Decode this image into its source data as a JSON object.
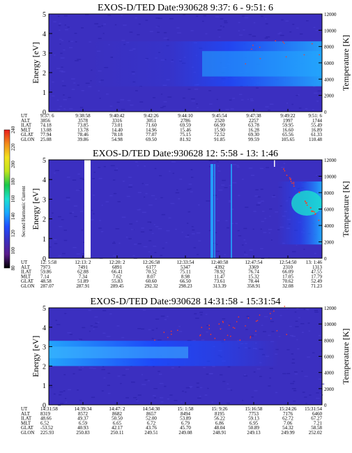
{
  "colors": {
    "background_low": "#2a1fa8",
    "background_mid": "#3b2fc0",
    "flux_mid": "#1a4cff",
    "flux_high": "#22aaff",
    "hot_dot": "#ff3b1f",
    "gap": "#ffffff",
    "colorbar": [
      "#000000",
      "#5a1c8c",
      "#3b2fc0",
      "#1f4dff",
      "#18a8ff",
      "#1ce0d0",
      "#19c84a",
      "#bfe41b",
      "#f2e21c",
      "#f28a1a",
      "#e81c1c"
    ]
  },
  "colorbar": {
    "title": "Second Harmonic Current",
    "ticks": [
      "80",
      "100",
      "120",
      "140",
      "160",
      "180",
      "200",
      "220",
      "240"
    ]
  },
  "chart_data": [
    {
      "type": "heatmap",
      "title": "EXOS-D/TED   Date:930628   9:37: 6 - 9:51: 6",
      "ylabel": "Energy [eV]",
      "y2label": "Temperature [K]",
      "ylim": [
        0,
        5
      ],
      "y2lim": [
        0,
        12000
      ],
      "yticks": [
        "0",
        "1",
        "2",
        "3",
        "4",
        "5"
      ],
      "y2ticks": [
        "0",
        "2000",
        "4000",
        "6000",
        "8000",
        "10000",
        "12000"
      ],
      "ephemeris": {
        "row_labels": [
          "UT",
          "ALT",
          "ILAT",
          "MLT",
          "GLAT",
          "GLON"
        ],
        "columns": [
          [
            "9:37: 6",
            "3856",
            "74.18",
            "13.08",
            "77.94",
            "25.08"
          ],
          [
            "9:38:58",
            "3578",
            "73.85",
            "13.78",
            "78.46",
            "39.86"
          ],
          [
            "9:40:42",
            "3316",
            "73.01",
            "14.40",
            "78.18",
            "54.98"
          ],
          [
            "9:42:26",
            "3051",
            "71.60",
            "14.96",
            "77.07",
            "69.50"
          ],
          [
            "9:44:10",
            "2786",
            "69.59",
            "15.46",
            "75.15",
            "81.92"
          ],
          [
            "9:45:54",
            "2520",
            "66.99",
            "15.90",
            "72.52",
            "91.85"
          ],
          [
            "9:47:38",
            "2257",
            "63.78",
            "16.28",
            "69.30",
            "99.59"
          ],
          [
            "9:49:22",
            "1997",
            "59.95",
            "16.60",
            "65.56",
            "105.65"
          ],
          [
            "9:51: 6",
            "1744",
            "55.49",
            "16.89",
            "61.33",
            "110.48"
          ]
        ]
      }
    },
    {
      "type": "heatmap",
      "title": "EXOS-D/TED   Date:930628   12: 5:58 - 13: 1:46",
      "ylabel": "Energy [eV]",
      "y2label": "Temperature [K]",
      "ylim": [
        0,
        5
      ],
      "y2lim": [
        0,
        12000
      ],
      "yticks": [
        "0",
        "1",
        "2",
        "3",
        "4",
        "5"
      ],
      "y2ticks": [
        "0",
        "2000",
        "4000",
        "6000",
        "8000",
        "10000",
        "12000"
      ],
      "ephemeris": {
        "row_labels": [
          "UT",
          "ALT",
          "ILAT",
          "MLT",
          "GLAT",
          "GLON"
        ],
        "columns": [
          [
            "12: 5:58",
            "7973",
            "59.86",
            "7.14",
            "48.58",
            "287.07"
          ],
          [
            "12:13: 2",
            "7491",
            "62.88",
            "7.34",
            "51.89",
            "287.91"
          ],
          [
            "12:20: 2",
            "6891",
            "66.41",
            "7.62",
            "55.83",
            "289.45"
          ],
          [
            "12:26:58",
            "6177",
            "70.52",
            "8.07",
            "60.60",
            "292.32"
          ],
          [
            "12:33:54",
            "5347",
            "75.11",
            "8.98",
            "66.50",
            "298.23"
          ],
          [
            "12:40:58",
            "4392",
            "78.92",
            "11.47",
            "73.61",
            "313.39"
          ],
          [
            "12:47:54",
            "3369",
            "76.74",
            "15.32",
            "78.44",
            "358.91"
          ],
          [
            "12:54:50",
            "2310",
            "66.09",
            "17.05",
            "70.62",
            "32.08"
          ],
          [
            "13: 1:46",
            "1313",
            "47.55",
            "17.79",
            "52.49",
            "71.23"
          ]
        ]
      }
    },
    {
      "type": "heatmap",
      "title": "EXOS-D/TED   Date:930628   14:31:58 - 15:31:54",
      "ylabel": "Energy [eV]",
      "y2label": "Temperature [K]",
      "ylim": [
        0,
        5
      ],
      "y2lim": [
        0,
        12000
      ],
      "yticks": [
        "0",
        "1",
        "2",
        "3",
        "4",
        "5"
      ],
      "y2ticks": [
        "0",
        "2000",
        "4000",
        "6000",
        "8000",
        "10000",
        "12000"
      ],
      "ephemeris": {
        "row_labels": [
          "UT",
          "ALT",
          "ILAT",
          "MLT",
          "GLAT",
          "GLON"
        ],
        "columns": [
          [
            "14:31:58",
            "8319",
            "48.66",
            "6.52",
            "-53.52",
            "225.93"
          ],
          [
            "14:39:34",
            "8572",
            "49.37",
            "6.59",
            "40.93",
            "250.83"
          ],
          [
            "14:47: 2",
            "8682",
            "50.50",
            "6.65",
            "42.17",
            "250.11"
          ],
          [
            "14:54:30",
            "8657",
            "52.00",
            "6.72",
            "43.76",
            "249.51"
          ],
          [
            "15: 1:58",
            "8494",
            "53.89",
            "6.79",
            "45.70",
            "249.08"
          ],
          [
            "15: 9:26",
            "8195",
            "56.22",
            "6.86",
            "48.04",
            "248.91"
          ],
          [
            "15:16:58",
            "7753",
            "59.13",
            "6.95",
            "50.89",
            "249.13"
          ],
          [
            "15:24:26",
            "7176",
            "62.72",
            "7.06",
            "54.32",
            "249.99"
          ],
          [
            "15:31:54",
            "6460",
            "67.27",
            "7.21",
            "58.58",
            "252.02"
          ]
        ]
      }
    }
  ]
}
